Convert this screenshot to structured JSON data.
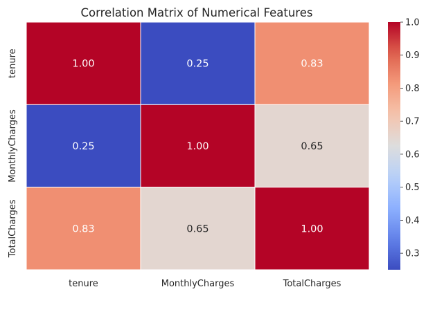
{
  "chart_data": {
    "type": "heatmap",
    "title": "Correlation Matrix of Numerical Features",
    "xlabel": "",
    "ylabel": "",
    "x_categories": [
      "tenure",
      "MonthlyCharges",
      "TotalCharges"
    ],
    "y_categories": [
      "tenure",
      "MonthlyCharges",
      "TotalCharges"
    ],
    "values": [
      [
        1.0,
        0.25,
        0.83
      ],
      [
        0.25,
        1.0,
        0.65
      ],
      [
        0.83,
        0.65,
        1.0
      ]
    ],
    "value_labels": [
      [
        "1.00",
        "0.25",
        "0.83"
      ],
      [
        "0.25",
        "1.00",
        "0.65"
      ],
      [
        "0.83",
        "0.65",
        "1.00"
      ]
    ],
    "colormap": "coolwarm",
    "vmin": 0.25,
    "vmax": 1.0,
    "colorbar": {
      "ticks": [
        0.3,
        0.4,
        0.5,
        0.6,
        0.7,
        0.8,
        0.9,
        1.0
      ],
      "tick_labels": [
        "0.3",
        "0.4",
        "0.5",
        "0.6",
        "0.7",
        "0.8",
        "0.9",
        "1.0"
      ],
      "placement": "right"
    },
    "grid": false,
    "cell_line_color": "#ffffff"
  }
}
